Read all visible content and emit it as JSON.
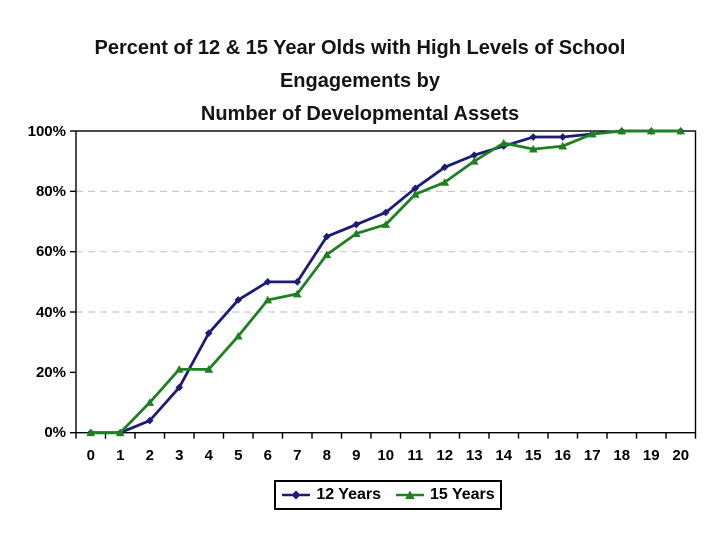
{
  "title": {
    "line1": "Percent of 12 & 15 Year Olds with High Levels of School",
    "line2": "Engagements by",
    "line3": "Number of Developmental Assets"
  },
  "colors": {
    "title_text": "#141414",
    "axis": "#000000",
    "gridline": "#c9c9c9",
    "series_12_years": "#1c1c77",
    "series_15_years": "#1f8021",
    "background": "#ffffff"
  },
  "chart_data": {
    "type": "line",
    "title": "Percent of 12 & 15 Year Olds with High Levels of School Engagements by Number of Developmental Assets",
    "xlabel": "",
    "ylabel": "",
    "x": [
      0,
      1,
      2,
      3,
      4,
      5,
      6,
      7,
      8,
      9,
      10,
      11,
      12,
      13,
      14,
      15,
      16,
      17,
      18,
      19,
      20
    ],
    "x_tick_labels": [
      "0",
      "1",
      "2",
      "3",
      "4",
      "5",
      "6",
      "7",
      "8",
      "9",
      "10",
      "11",
      "12",
      "13",
      "14",
      "15",
      "16",
      "17",
      "18",
      "19",
      "20"
    ],
    "y_tick_labels": [
      "0%",
      "20%",
      "40%",
      "60%",
      "80%",
      "100%"
    ],
    "y_tick_values": [
      0,
      20,
      40,
      60,
      80,
      100
    ],
    "ylim": [
      0,
      100
    ],
    "gridlines_at": [
      40,
      60,
      80
    ],
    "grid_style": "dashed",
    "legend_position": "bottom",
    "series": [
      {
        "name": "12 Years",
        "color": "#1c1c77",
        "marker": "diamond",
        "values": [
          0,
          0,
          4,
          15,
          33,
          44,
          50,
          50,
          65,
          69,
          73,
          81,
          88,
          92,
          95,
          98,
          98,
          99,
          100,
          100,
          100
        ]
      },
      {
        "name": "15 Years",
        "color": "#1f8021",
        "marker": "triangle",
        "values": [
          0,
          0,
          10,
          21,
          21,
          32,
          44,
          46,
          59,
          66,
          69,
          79,
          83,
          90,
          96,
          94,
          95,
          99,
          100,
          100,
          100
        ]
      }
    ]
  }
}
